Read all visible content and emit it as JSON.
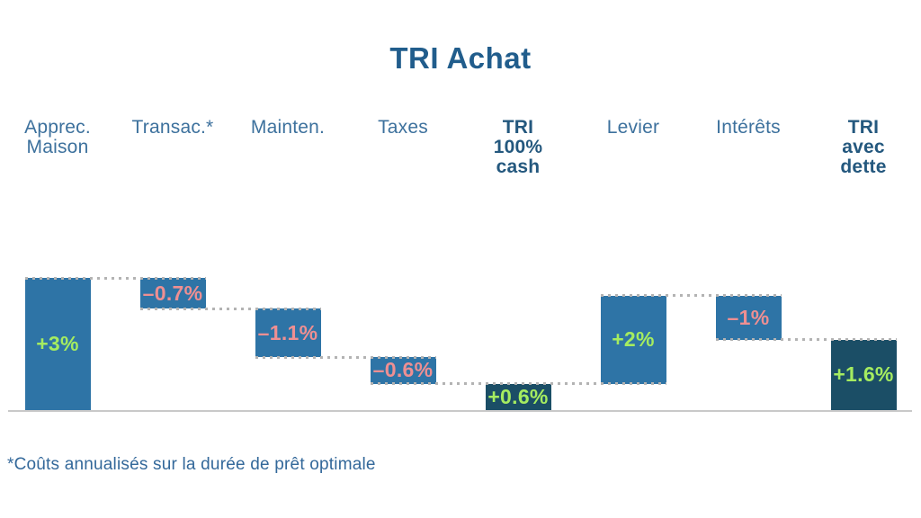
{
  "title": "TRI Achat",
  "footnote": "*Coûts annualisés sur la durée de prêt optimale",
  "chart_data": {
    "type": "bar",
    "subtype": "waterfall",
    "title": "TRI Achat",
    "unit": "%",
    "baseline_value": 0,
    "ylim": [
      0,
      3.2
    ],
    "grid": false,
    "legend": "none",
    "categories": [
      "Apprec. Maison",
      "Transac.*",
      "Mainten.",
      "Taxes",
      "TRI 100% cash",
      "Levier",
      "Intérêts",
      "TRI avec dette"
    ],
    "bars": [
      {
        "name": "Apprec. Maison",
        "header_lines": [
          "Apprec.",
          "Maison"
        ],
        "header_bold": false,
        "value": 3.0,
        "label": "+3%",
        "role": "delta"
      },
      {
        "name": "Transac.*",
        "header_lines": [
          "Transac.*"
        ],
        "header_bold": false,
        "value": -0.7,
        "label": "–0.7%",
        "role": "delta"
      },
      {
        "name": "Mainten.",
        "header_lines": [
          "Mainten."
        ],
        "header_bold": false,
        "value": -1.1,
        "label": "–1.1%",
        "role": "delta"
      },
      {
        "name": "Taxes",
        "header_lines": [
          "Taxes"
        ],
        "header_bold": false,
        "value": -0.6,
        "label": "–0.6%",
        "role": "delta"
      },
      {
        "name": "TRI 100% cash",
        "header_lines": [
          "TRI",
          "100%",
          "cash"
        ],
        "header_bold": true,
        "value": 0.6,
        "label": "+0.6%",
        "role": "total"
      },
      {
        "name": "Levier",
        "header_lines": [
          "Levier"
        ],
        "header_bold": false,
        "value": 2.0,
        "label": "+2%",
        "role": "delta"
      },
      {
        "name": "Intérêts",
        "header_lines": [
          "Intérêts"
        ],
        "header_bold": false,
        "value": -1.0,
        "label": "–1%",
        "role": "delta"
      },
      {
        "name": "TRI avec dette",
        "header_lines": [
          "TRI",
          "avec",
          "dette"
        ],
        "header_bold": true,
        "value": 1.6,
        "label": "+1.6%",
        "role": "total"
      }
    ],
    "colors": {
      "delta_bar": "#2e74a6",
      "total_bar": "#1b4e66",
      "positive_label": "#a5ec60",
      "negative_label": "#ee8f92",
      "connector_dots": "#b3b3b3",
      "axis_line": "#c9c9c9",
      "title_text": "#215d8c",
      "header_text": "#3d719d",
      "header_bold_text": "#24587e",
      "footnote_text": "#33689a"
    }
  }
}
